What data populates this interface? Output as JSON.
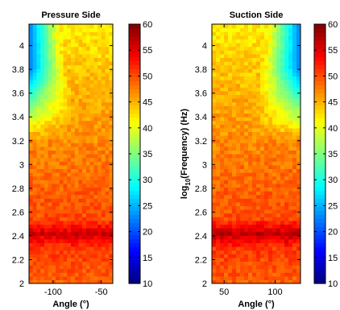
{
  "chart_data": [
    {
      "type": "heatmap",
      "title": "Pressure Side",
      "xlabel": "Angle (°)",
      "ylabel": "",
      "xlim": [
        -125,
        -38
      ],
      "ylim": [
        2,
        4.18
      ],
      "xticks": [
        -100,
        -50
      ],
      "yticks": [
        2,
        2.2,
        2.4,
        2.6,
        2.8,
        3,
        3.2,
        3.4,
        3.6,
        3.8,
        4
      ],
      "colorbar": {
        "clim": [
          10,
          60
        ],
        "ticks": [
          10,
          15,
          20,
          25,
          30,
          35,
          40,
          45,
          50,
          55,
          60
        ]
      },
      "value_profile": [
        {
          "y": 2.0,
          "value": 49
        },
        {
          "y": 2.3,
          "value": 51
        },
        {
          "y": 2.42,
          "value": 56
        },
        {
          "y": 2.55,
          "value": 50
        },
        {
          "y": 2.8,
          "value": 49
        },
        {
          "y": 3.2,
          "value": 47
        },
        {
          "y": 3.6,
          "value": 45
        },
        {
          "y": 4.0,
          "value": 43
        },
        {
          "y": 4.18,
          "value": 42
        }
      ],
      "low_region": {
        "x": -125,
        "y_from": 3.2,
        "y_to": 4.18,
        "min_value": 22
      }
    },
    {
      "type": "heatmap",
      "title": "Suction Side",
      "xlabel": "Angle (°)",
      "ylabel": "log10(Frequency) (Hz)",
      "xlim": [
        38,
        125
      ],
      "ylim": [
        2,
        4.18
      ],
      "xticks": [
        50,
        100
      ],
      "yticks": [
        2,
        2.2,
        2.4,
        2.6,
        2.8,
        3,
        3.2,
        3.4,
        3.6,
        3.8,
        4
      ],
      "colorbar": {
        "clim": [
          10,
          60
        ],
        "ticks": [
          10,
          15,
          20,
          25,
          30,
          35,
          40,
          45,
          50,
          55,
          60
        ]
      },
      "value_profile": [
        {
          "y": 2.0,
          "value": 49
        },
        {
          "y": 2.3,
          "value": 51
        },
        {
          "y": 2.42,
          "value": 57
        },
        {
          "y": 2.55,
          "value": 50
        },
        {
          "y": 2.8,
          "value": 49
        },
        {
          "y": 3.2,
          "value": 47
        },
        {
          "y": 3.6,
          "value": 45
        },
        {
          "y": 4.0,
          "value": 43
        },
        {
          "y": 4.18,
          "value": 42
        }
      ],
      "low_region": {
        "x": 125,
        "y_from": 3.2,
        "y_to": 4.18,
        "min_value": 22
      }
    }
  ]
}
